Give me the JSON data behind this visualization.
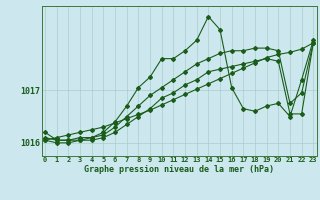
{
  "title": "Graphe pression niveau de la mer (hPa)",
  "background_color": "#cce8ee",
  "grid_color": "#aacccc",
  "line_color": "#1a5c1a",
  "hours": [
    0,
    1,
    2,
    3,
    4,
    5,
    6,
    7,
    8,
    9,
    10,
    11,
    12,
    13,
    14,
    15,
    16,
    17,
    18,
    19,
    20,
    21,
    22,
    23
  ],
  "series_spiky": [
    1016.2,
    1016.05,
    1016.05,
    1016.05,
    1016.1,
    1016.2,
    1016.4,
    1016.7,
    1017.05,
    1017.25,
    1017.6,
    1017.6,
    1017.75,
    1017.95,
    1018.4,
    1018.15,
    1017.05,
    1016.65,
    1016.6,
    1016.7,
    1016.75,
    1016.5,
    1017.2,
    1017.95
  ],
  "series_smooth": [
    1016.05,
    1016.0,
    1016.0,
    1016.05,
    1016.05,
    1016.1,
    1016.2,
    1016.35,
    1016.5,
    1016.65,
    1016.85,
    1016.95,
    1017.1,
    1017.2,
    1017.35,
    1017.4,
    1017.45,
    1017.5,
    1017.55,
    1017.6,
    1017.55,
    1016.55,
    1016.55,
    1017.9
  ],
  "series_mid": [
    1016.1,
    1016.05,
    1016.05,
    1016.1,
    1016.1,
    1016.15,
    1016.3,
    1016.5,
    1016.7,
    1016.9,
    1017.05,
    1017.2,
    1017.35,
    1017.5,
    1017.6,
    1017.7,
    1017.75,
    1017.75,
    1017.8,
    1017.8,
    1017.75,
    1016.75,
    1016.95,
    1017.9
  ],
  "series_linear": [
    1016.05,
    1016.1,
    1016.15,
    1016.2,
    1016.25,
    1016.3,
    1016.38,
    1016.46,
    1016.54,
    1016.62,
    1016.72,
    1016.82,
    1016.92,
    1017.02,
    1017.12,
    1017.22,
    1017.32,
    1017.42,
    1017.52,
    1017.62,
    1017.68,
    1017.72,
    1017.78,
    1017.9
  ],
  "ylim": [
    1015.75,
    1018.6
  ],
  "yticks": [
    1016.0,
    1017.0
  ],
  "xlim": [
    -0.3,
    23.3
  ],
  "title_fontsize": 6,
  "tick_fontsize": 5,
  "ylabel_fontsize": 6
}
